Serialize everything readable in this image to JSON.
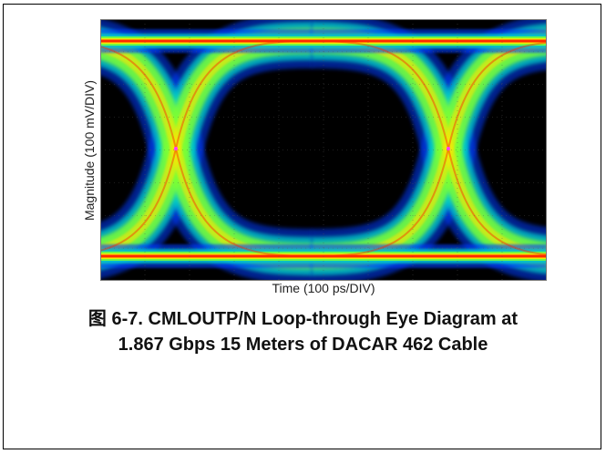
{
  "chart_data": {
    "type": "eye-diagram",
    "title": "",
    "xlabel": "Time (100 ps/DIV)",
    "ylabel": "Magnitude (100 mV/DIV)",
    "colors": {
      "background": "#000000",
      "hot": "#ff2a00",
      "warm": "#ffe600",
      "mid": "#7dff33",
      "cool": "#00d2c8",
      "cold": "#0a3cff",
      "marker": "#ff3cff"
    }
  },
  "caption": {
    "line1": "图 6-7. CMLOUTP/N Loop-through Eye Diagram at",
    "line2": "1.867 Gbps 15 Meters of DACAR 462 Cable"
  }
}
